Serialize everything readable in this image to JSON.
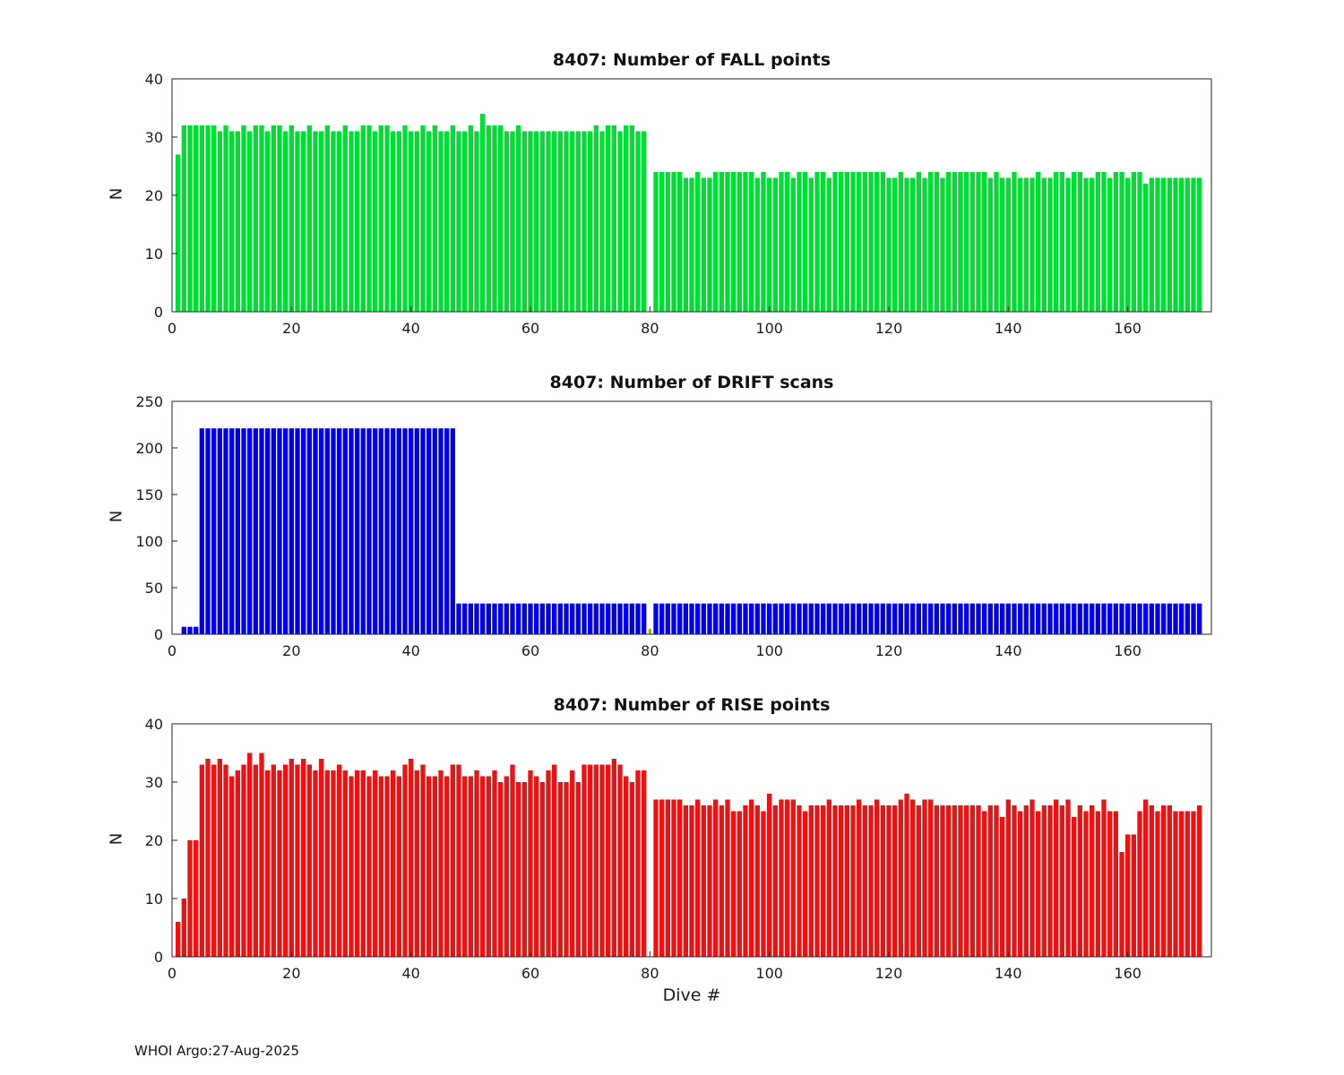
{
  "figure": {
    "xlabel": "Dive #",
    "footer": "WHOI Argo:27-Aug-2025"
  },
  "chart_data": [
    {
      "type": "bar",
      "title": "8407: Number of FALL points",
      "ylabel": "N",
      "ylim": [
        0,
        40
      ],
      "yticks": [
        0,
        10,
        20,
        30,
        40
      ],
      "xlim": [
        0,
        174
      ],
      "xticks": [
        0,
        20,
        40,
        60,
        80,
        100,
        120,
        140,
        160
      ],
      "bar_color": "#00dd33",
      "x_start": 1,
      "grid": false,
      "legend": null,
      "values": [
        27,
        32,
        32,
        32,
        32,
        32,
        32,
        31,
        32,
        31,
        31,
        32,
        31,
        32,
        32,
        31,
        32,
        32,
        31,
        32,
        31,
        31,
        32,
        31,
        31,
        32,
        31,
        31,
        32,
        31,
        31,
        32,
        32,
        31,
        32,
        32,
        31,
        31,
        32,
        31,
        31,
        32,
        31,
        32,
        31,
        31,
        32,
        31,
        31,
        32,
        31,
        34,
        32,
        32,
        32,
        31,
        31,
        32,
        31,
        31,
        31,
        31,
        31,
        31,
        31,
        31,
        31,
        31,
        31,
        31,
        32,
        31,
        32,
        32,
        31,
        32,
        32,
        31,
        31,
        0,
        24,
        24,
        24,
        24,
        24,
        23,
        23,
        24,
        23,
        23,
        24,
        24,
        24,
        24,
        24,
        24,
        24,
        23,
        24,
        23,
        23,
        24,
        24,
        23,
        24,
        24,
        23,
        24,
        24,
        23,
        24,
        24,
        24,
        24,
        24,
        24,
        24,
        24,
        24,
        23,
        23,
        24,
        23,
        23,
        24,
        23,
        24,
        24,
        23,
        24,
        24,
        24,
        24,
        24,
        24,
        24,
        23,
        24,
        23,
        23,
        24,
        23,
        23,
        23,
        24,
        23,
        23,
        24,
        24,
        23,
        24,
        24,
        23,
        23,
        24,
        24,
        23,
        24,
        24,
        23,
        24,
        24,
        22,
        23,
        23,
        23,
        23,
        23,
        23,
        23,
        23,
        23
      ]
    },
    {
      "type": "bar",
      "title": "8407: Number of DRIFT scans",
      "ylabel": "N",
      "ylim": [
        0,
        250
      ],
      "yticks": [
        0,
        50,
        100,
        150,
        200,
        250
      ],
      "xlim": [
        0,
        174
      ],
      "xticks": [
        0,
        20,
        40,
        60,
        80,
        100,
        120,
        140,
        160
      ],
      "bar_color": "#0000ee",
      "x_start": 1,
      "grid": false,
      "legend": null,
      "overrides": [
        {
          "index": 79,
          "color": "#ffee00"
        }
      ],
      "values": [
        0,
        8,
        8,
        8,
        221,
        221,
        221,
        221,
        221,
        221,
        221,
        221,
        221,
        221,
        221,
        221,
        221,
        221,
        221,
        221,
        221,
        221,
        221,
        221,
        221,
        221,
        221,
        221,
        221,
        221,
        221,
        221,
        221,
        221,
        221,
        221,
        221,
        221,
        221,
        221,
        221,
        221,
        221,
        221,
        221,
        221,
        221,
        33,
        33,
        33,
        33,
        33,
        33,
        33,
        33,
        33,
        33,
        33,
        33,
        33,
        33,
        33,
        33,
        33,
        33,
        33,
        33,
        33,
        33,
        33,
        33,
        33,
        33,
        33,
        33,
        33,
        33,
        33,
        33,
        5,
        33,
        33,
        33,
        33,
        33,
        33,
        33,
        33,
        33,
        33,
        33,
        33,
        33,
        33,
        33,
        33,
        33,
        33,
        33,
        33,
        33,
        33,
        33,
        33,
        33,
        33,
        33,
        33,
        33,
        33,
        33,
        33,
        33,
        33,
        33,
        33,
        33,
        33,
        33,
        33,
        33,
        33,
        33,
        33,
        33,
        33,
        33,
        33,
        33,
        33,
        33,
        33,
        33,
        33,
        33,
        33,
        33,
        33,
        33,
        33,
        33,
        33,
        33,
        33,
        33,
        33,
        33,
        33,
        33,
        33,
        33,
        33,
        33,
        33,
        33,
        33,
        33,
        33,
        33,
        33,
        33,
        33,
        33,
        33,
        33,
        33,
        33,
        33,
        33,
        33,
        33,
        33
      ]
    },
    {
      "type": "bar",
      "title": "8407: Number of RISE points",
      "ylabel": "N",
      "ylim": [
        0,
        40
      ],
      "yticks": [
        0,
        10,
        20,
        30,
        40
      ],
      "xlim": [
        0,
        174
      ],
      "xticks": [
        0,
        20,
        40,
        60,
        80,
        100,
        120,
        140,
        160
      ],
      "bar_color": "#ee1111",
      "x_start": 1,
      "grid": false,
      "legend": null,
      "values": [
        6,
        10,
        20,
        20,
        33,
        34,
        33,
        34,
        33,
        31,
        32,
        33,
        35,
        33,
        35,
        32,
        33,
        32,
        33,
        34,
        33,
        34,
        33,
        32,
        34,
        32,
        32,
        33,
        32,
        31,
        32,
        32,
        31,
        32,
        31,
        31,
        32,
        31,
        33,
        34,
        32,
        33,
        31,
        31,
        32,
        31,
        33,
        33,
        31,
        31,
        32,
        31,
        31,
        32,
        30,
        31,
        33,
        30,
        30,
        32,
        31,
        30,
        32,
        33,
        30,
        30,
        32,
        30,
        33,
        33,
        33,
        33,
        33,
        34,
        33,
        31,
        30,
        32,
        32,
        0,
        27,
        27,
        27,
        27,
        27,
        26,
        26,
        27,
        26,
        26,
        27,
        26,
        27,
        25,
        25,
        26,
        27,
        26,
        25,
        28,
        26,
        27,
        27,
        27,
        26,
        25,
        26,
        26,
        26,
        27,
        26,
        26,
        26,
        26,
        27,
        26,
        26,
        27,
        26,
        26,
        26,
        27,
        28,
        27,
        26,
        27,
        27,
        26,
        26,
        26,
        26,
        26,
        26,
        26,
        26,
        25,
        26,
        26,
        24,
        27,
        26,
        25,
        26,
        27,
        25,
        26,
        26,
        27,
        26,
        27,
        24,
        26,
        25,
        26,
        25,
        27,
        25,
        25,
        18,
        21,
        21,
        25,
        27,
        26,
        25,
        26,
        26,
        25,
        25,
        25,
        25,
        26
      ]
    }
  ]
}
